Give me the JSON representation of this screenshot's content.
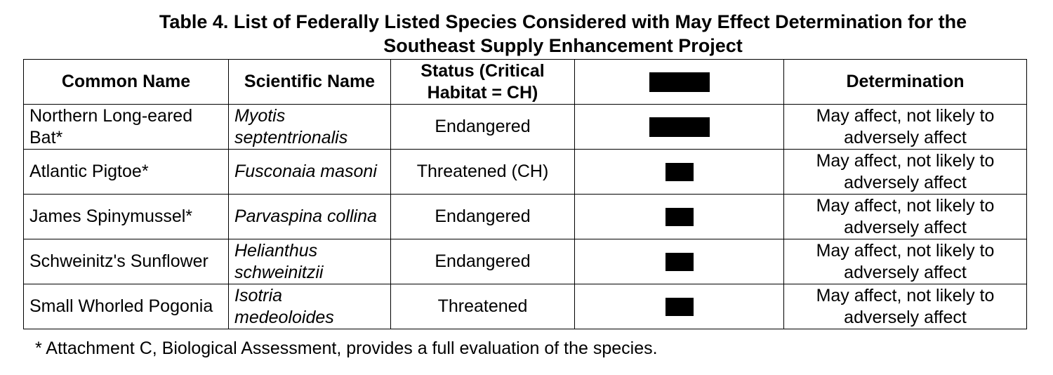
{
  "title": {
    "line1": "Table 4. List of Federally Listed Species Considered with May Effect Determination for the",
    "line2": "Southeast Supply Enhancement Project"
  },
  "table": {
    "headers": {
      "common_name": "Common Name",
      "scientific_name": "Scientific Name",
      "status": "Status (Critical Habitat = CH)",
      "redacted": "",
      "determination": "Determination"
    },
    "rows": [
      {
        "common_name": "Northern Long-eared Bat*",
        "scientific_name": "Myotis septentrionalis",
        "status": "Endangered",
        "determination": "May affect, not likely to adversely affect"
      },
      {
        "common_name": "Atlantic Pigtoe*",
        "scientific_name": "Fusconaia masoni",
        "status": "Threatened (CH)",
        "determination": "May affect, not likely to adversely affect"
      },
      {
        "common_name": "James Spinymussel*",
        "scientific_name": "Parvaspina collina",
        "status": "Endangered",
        "determination": "May affect, not likely to adversely affect"
      },
      {
        "common_name": "Schweinitz's Sunflower",
        "scientific_name": "Helianthus schweinitzii",
        "status": "Endangered",
        "determination": "May affect, not likely to adversely affect"
      },
      {
        "common_name": "Small Whorled Pogonia",
        "scientific_name": "Isotria medeoloides",
        "status": "Threatened",
        "determination": "May affect, not likely to adversely affect"
      }
    ]
  },
  "footnote": "* Attachment C, Biological Assessment, provides a full evaluation of the species."
}
